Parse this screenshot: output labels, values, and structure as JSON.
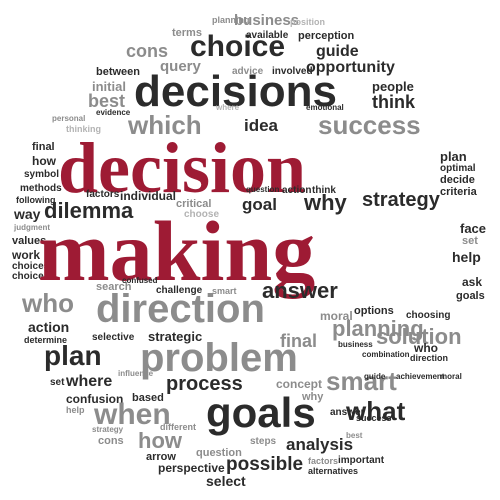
{
  "colors": {
    "accent": "#9e1b34",
    "dark": "#2b2b2b",
    "gray": "#8c8c8c",
    "light": "#b3b3b3"
  },
  "words": [
    {
      "text": "planning"
    },
    {
      "text": "business"
    },
    {
      "text": "position"
    },
    {
      "text": "terms"
    },
    {
      "text": "available"
    },
    {
      "text": "perception"
    },
    {
      "text": "cons"
    },
    {
      "text": "choice"
    },
    {
      "text": "guide"
    },
    {
      "text": "query"
    },
    {
      "text": "opportunity"
    },
    {
      "text": "between"
    },
    {
      "text": "advice"
    },
    {
      "text": "involved"
    },
    {
      "text": "initial"
    },
    {
      "text": "decisions"
    },
    {
      "text": "people"
    },
    {
      "text": "best"
    },
    {
      "text": "think"
    },
    {
      "text": "which"
    },
    {
      "text": "idea"
    },
    {
      "text": "success"
    },
    {
      "text": "evidence"
    },
    {
      "text": "personal"
    },
    {
      "text": "thinking"
    },
    {
      "text": "where"
    },
    {
      "text": "emotional"
    },
    {
      "text": "final"
    },
    {
      "text": "how"
    },
    {
      "text": "symbol"
    },
    {
      "text": "decision"
    },
    {
      "text": "plan"
    },
    {
      "text": "optimal"
    },
    {
      "text": "decide"
    },
    {
      "text": "criteria"
    },
    {
      "text": "methods"
    },
    {
      "text": "following"
    },
    {
      "text": "way"
    },
    {
      "text": "factors"
    },
    {
      "text": "individual"
    },
    {
      "text": "question"
    },
    {
      "text": "action"
    },
    {
      "text": "think"
    },
    {
      "text": "dilemma"
    },
    {
      "text": "goal"
    },
    {
      "text": "why"
    },
    {
      "text": "strategy"
    },
    {
      "text": "critical"
    },
    {
      "text": "choose"
    },
    {
      "text": "judgment"
    },
    {
      "text": "values"
    },
    {
      "text": "work"
    },
    {
      "text": "choices"
    },
    {
      "text": "choice"
    },
    {
      "text": "making"
    },
    {
      "text": "face"
    },
    {
      "text": "set"
    },
    {
      "text": "help"
    },
    {
      "text": "ask"
    },
    {
      "text": "goals"
    },
    {
      "text": "answer"
    },
    {
      "text": "who"
    },
    {
      "text": "direction"
    },
    {
      "text": "search"
    },
    {
      "text": "confused"
    },
    {
      "text": "challenge"
    },
    {
      "text": "smart"
    },
    {
      "text": "options"
    },
    {
      "text": "choosing"
    },
    {
      "text": "planning"
    },
    {
      "text": "action"
    },
    {
      "text": "determine"
    },
    {
      "text": "selective"
    },
    {
      "text": "strategic"
    },
    {
      "text": "moral"
    },
    {
      "text": "solution"
    },
    {
      "text": "plan"
    },
    {
      "text": "problem"
    },
    {
      "text": "final"
    },
    {
      "text": "business"
    },
    {
      "text": "combination"
    },
    {
      "text": "who"
    },
    {
      "text": "direction"
    },
    {
      "text": "set"
    },
    {
      "text": "where"
    },
    {
      "text": "influence"
    },
    {
      "text": "process"
    },
    {
      "text": "concept"
    },
    {
      "text": "smart"
    },
    {
      "text": "guide"
    },
    {
      "text": "achievement"
    },
    {
      "text": "moral"
    },
    {
      "text": "confusion"
    },
    {
      "text": "based"
    },
    {
      "text": "why"
    },
    {
      "text": "what"
    },
    {
      "text": "help"
    },
    {
      "text": "when"
    },
    {
      "text": "goals"
    },
    {
      "text": "answer"
    },
    {
      "text": "success"
    },
    {
      "text": "strategy"
    },
    {
      "text": "cons"
    },
    {
      "text": "different"
    },
    {
      "text": "how"
    },
    {
      "text": "steps"
    },
    {
      "text": "analysis"
    },
    {
      "text": "best"
    },
    {
      "text": "important"
    },
    {
      "text": "arrow"
    },
    {
      "text": "perspective"
    },
    {
      "text": "question"
    },
    {
      "text": "possible"
    },
    {
      "text": "factors"
    },
    {
      "text": "alternatives"
    },
    {
      "text": "select"
    }
  ]
}
